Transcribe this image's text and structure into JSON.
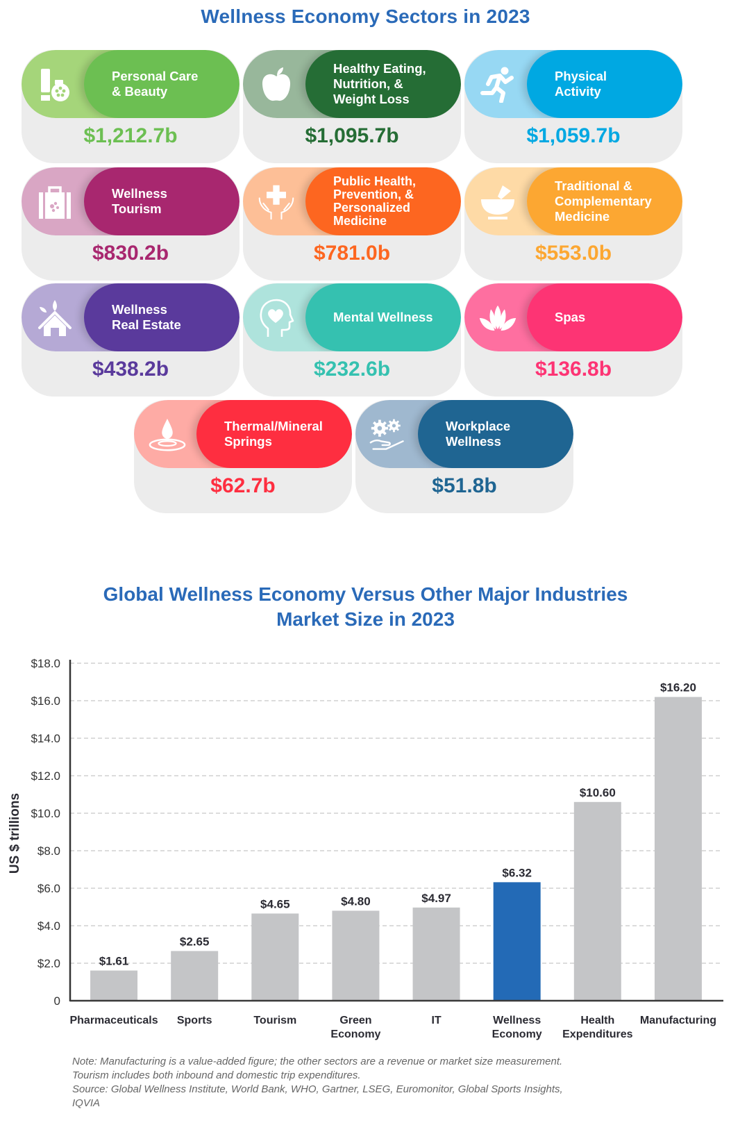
{
  "page": {
    "title_top": "Wellness Economy Sectors in 2023",
    "title_chart_line1": "Global Wellness Economy Versus Other Major Industries",
    "title_chart_line2": "Market Size in 2023"
  },
  "sectors": [
    {
      "label": "Personal Care\n& Beauty",
      "value": "$1,212.7b",
      "icon": "beauty-products-icon",
      "light": "#a5d57a",
      "dark": "#6cbf52",
      "value_color": "#6cbf52"
    },
    {
      "label": "Healthy Eating,\nNutrition, &\nWeight Loss",
      "value": "$1,095.7b",
      "icon": "apple-icon",
      "light": "#98b79b",
      "dark": "#256d35",
      "value_color": "#256d35"
    },
    {
      "label": "Physical\nActivity",
      "value": "$1,059.7b",
      "icon": "runner-icon",
      "light": "#97d8f3",
      "dark": "#00a8e2",
      "value_color": "#00a8e2"
    },
    {
      "label": "Wellness\nTourism",
      "value": "$830.2b",
      "icon": "suitcase-icon",
      "light": "#d9a6c4",
      "dark": "#a8276f",
      "value_color": "#a8276f"
    },
    {
      "label": "Public Health,\nPrevention, &\nPersonalized\nMedicine",
      "value": "$781.0b",
      "icon": "hands-cross-icon",
      "light": "#fdbf97",
      "dark": "#fd6620",
      "value_color": "#fd6620"
    },
    {
      "label": "Traditional &\nComplementary\nMedicine",
      "value": "$553.0b",
      "icon": "mortar-pestle-icon",
      "light": "#fedaa6",
      "dark": "#fca732",
      "value_color": "#fca732"
    },
    {
      "label": "Wellness\nReal Estate",
      "value": "$438.2b",
      "icon": "house-leaf-icon",
      "light": "#b5a9d5",
      "dark": "#5a3a9c",
      "value_color": "#5a3a9c"
    },
    {
      "label": "Mental Wellness",
      "value": "$232.6b",
      "icon": "head-heart-icon",
      "light": "#aee3dc",
      "dark": "#35c1b0",
      "value_color": "#35c1b0"
    },
    {
      "label": "Spas",
      "value": "$136.8b",
      "icon": "lotus-icon",
      "light": "#fe6fa0",
      "dark": "#fd3474",
      "value_color": "#fd3474"
    },
    {
      "label": "Thermal/Mineral\nSprings",
      "value": "$62.7b",
      "icon": "water-drop-icon",
      "light": "#feaba5",
      "dark": "#fe2e40",
      "value_color": "#fe2e40"
    },
    {
      "label": "Workplace\nWellness",
      "value": "$51.8b",
      "icon": "gears-hand-icon",
      "light": "#9fb8cf",
      "dark": "#1f6592",
      "value_color": "#1f6592"
    }
  ],
  "chart_data": {
    "type": "bar",
    "title": "Global Wellness Economy Versus Other Major Industries Market Size in 2023",
    "xlabel": "",
    "ylabel": "US $ trillions",
    "categories": [
      "Pharmaceuticals",
      "Sports",
      "Tourism",
      "Green Economy",
      "IT",
      "Wellness Economy",
      "Health Expenditures",
      "Manufacturing"
    ],
    "category_lines": [
      [
        "Pharmaceuticals"
      ],
      [
        "Sports"
      ],
      [
        "Tourism"
      ],
      [
        "Green",
        "Economy"
      ],
      [
        "IT"
      ],
      [
        "Wellness",
        "Economy"
      ],
      [
        "Health",
        "Expenditures"
      ],
      [
        "Manufacturing"
      ]
    ],
    "values": [
      1.61,
      2.65,
      4.65,
      4.8,
      4.97,
      6.32,
      10.6,
      16.2
    ],
    "value_labels": [
      "$1.61",
      "$2.65",
      "$4.65",
      "$4.80",
      "$4.97",
      "$6.32",
      "$10.60",
      "$16.20"
    ],
    "highlight_index": 5,
    "colors": {
      "default": "#c4c5c7",
      "highlight": "#236ab6"
    },
    "ylim": [
      0,
      18
    ],
    "yticks": [
      0,
      2,
      4,
      6,
      8,
      10,
      12,
      14,
      16,
      18
    ],
    "ytick_labels": [
      "0",
      "$2.0",
      "$4.0",
      "$6.0",
      "$8.0",
      "$10.0",
      "$12.0",
      "$14.0",
      "$16.0",
      "$18.0"
    ],
    "grid": "dashed horizontal",
    "legend": "none"
  },
  "notes": [
    "Note: Manufacturing is a value-added figure; the other sectors are a revenue or market size measurement.",
    "Tourism includes both inbound and domestic trip expenditures.",
    "Source: Global Wellness Institute, World Bank, WHO, Gartner, LSEG, Euromonitor, Global Sports Insights,",
    "IQVIA"
  ]
}
